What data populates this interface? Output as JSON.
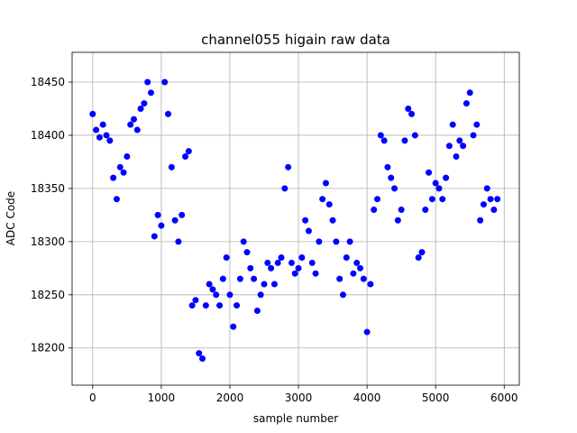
{
  "chart_data": {
    "type": "scatter",
    "title": "channel055 higain raw data",
    "xlabel": "sample number",
    "ylabel": "ADC Code",
    "xlim": [
      -300,
      6220
    ],
    "ylim": [
      18165,
      18478
    ],
    "xticks": [
      0,
      1000,
      2000,
      3000,
      4000,
      5000,
      6000
    ],
    "yticks": [
      18200,
      18250,
      18300,
      18350,
      18400,
      18450
    ],
    "grid": true,
    "marker_color": "#0000ff",
    "series": [
      {
        "x": [
          0,
          50,
          100,
          150,
          200,
          250,
          300,
          350,
          400,
          450,
          500,
          550,
          600,
          650,
          700,
          750,
          800,
          850,
          900,
          950,
          1000,
          1050,
          1100,
          1150,
          1200,
          1250,
          1300,
          1350,
          1400,
          1450,
          1500,
          1550,
          1600,
          1650,
          1700,
          1750,
          1800,
          1850,
          1900,
          1950,
          2000,
          2050,
          2100,
          2150,
          2200,
          2250,
          2300,
          2350,
          2400,
          2450,
          2500,
          2550,
          2600,
          2650,
          2700,
          2750,
          2800,
          2850,
          2900,
          2950,
          3000,
          3050,
          3100,
          3150,
          3200,
          3250,
          3300,
          3350,
          3400,
          3450,
          3500,
          3550,
          3600,
          3650,
          3700,
          3750,
          3800,
          3850,
          3900,
          3950,
          4000,
          4050,
          4100,
          4150,
          4200,
          4250,
          4300,
          4350,
          4400,
          4450,
          4500,
          4550,
          4600,
          4650,
          4700,
          4750,
          4800,
          4850,
          4900,
          4950,
          5000,
          5050,
          5100,
          5150,
          5200,
          5250,
          5300,
          5350,
          5400,
          5450,
          5500,
          5550,
          5600,
          5650,
          5700,
          5750,
          5800,
          5850,
          5900
        ],
        "y": [
          18420,
          18405,
          18398,
          18410,
          18400,
          18395,
          18360,
          18340,
          18370,
          18365,
          18380,
          18410,
          18415,
          18405,
          18425,
          18430,
          18450,
          18440,
          18305,
          18325,
          18315,
          18450,
          18420,
          18370,
          18320,
          18300,
          18325,
          18380,
          18385,
          18240,
          18245,
          18195,
          18190,
          18240,
          18260,
          18255,
          18250,
          18240,
          18265,
          18285,
          18250,
          18220,
          18240,
          18265,
          18300,
          18290,
          18275,
          18265,
          18235,
          18250,
          18260,
          18280,
          18275,
          18260,
          18280,
          18285,
          18350,
          18370,
          18280,
          18270,
          18275,
          18285,
          18320,
          18310,
          18280,
          18270,
          18300,
          18340,
          18355,
          18335,
          18320,
          18300,
          18265,
          18250,
          18285,
          18300,
          18270,
          18280,
          18275,
          18265,
          18215,
          18260,
          18330,
          18340,
          18400,
          18395,
          18370,
          18360,
          18350,
          18320,
          18330,
          18395,
          18425,
          18420,
          18400,
          18285,
          18290,
          18330,
          18365,
          18340,
          18355,
          18350,
          18340,
          18360,
          18390,
          18410,
          18380,
          18395,
          18390,
          18430,
          18440,
          18400,
          18410,
          18320,
          18335,
          18350,
          18340,
          18330,
          18340
        ]
      }
    ]
  }
}
